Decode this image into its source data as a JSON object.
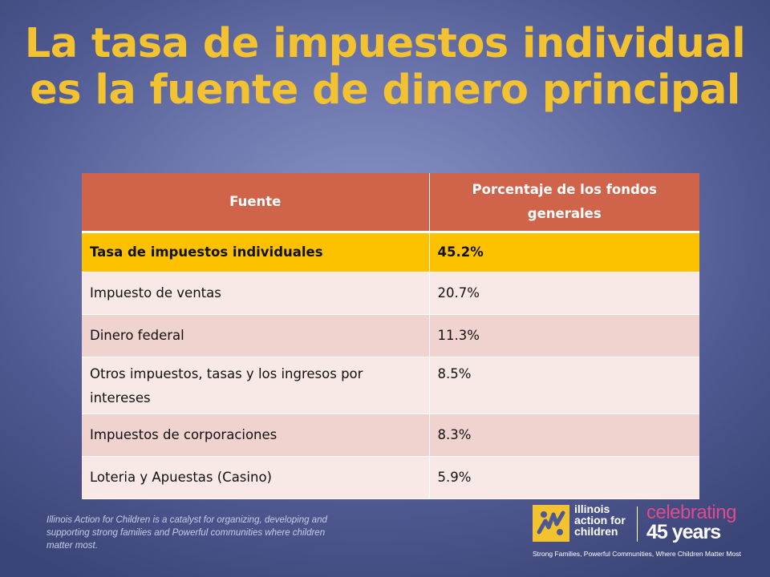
{
  "slide": {
    "title_line1": "La tasa de impuestos individual",
    "title_line2": "es la fuente de dinero principal"
  },
  "chart_data": {
    "type": "table",
    "columns": [
      "Fuente",
      "Porcentaje de los fondos generales"
    ],
    "rows": [
      [
        "Tasa de impuestos individuales",
        "45.2%"
      ],
      [
        "Impuesto de ventas",
        "20.7%"
      ],
      [
        "Dinero federal",
        "11.3%"
      ],
      [
        "Otros impuestos, tasas y los ingresos por intereses",
        "8.5%"
      ],
      [
        "Impuestos de corporaciones",
        "8.3%"
      ],
      [
        "Loteria y Apuestas (Casino)",
        "5.9%"
      ]
    ]
  },
  "footer": {
    "statement": "Illinois Action for Children is a catalyst for organizing, developing and supporting strong families and Powerful communities where children matter most."
  },
  "logo": {
    "name_line1": "illinois",
    "name_line2": "action for",
    "name_line3": "children",
    "celebrating": "celebrating",
    "years": "45 years",
    "tagline": "Strong Families, Powerful Communities, Where Children Matter Most"
  },
  "colors": {
    "title": "#f2c230",
    "header_row": "#d0644b",
    "highlight_row": "#fdc100",
    "row_light": "#f8e8e6",
    "row_dark": "#f0d2cf",
    "celebrating": "#e04a8e"
  }
}
